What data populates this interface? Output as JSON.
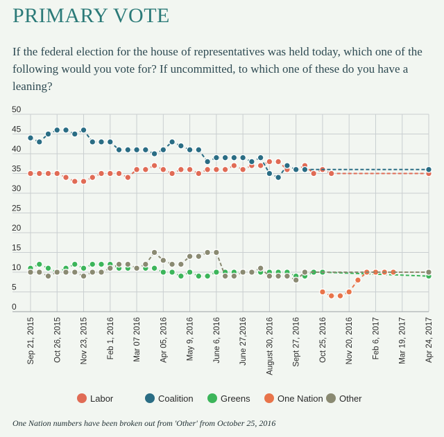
{
  "header": {
    "title": "PRIMARY VOTE",
    "subtitle": "If the federal election for the house of representatives was held today, which one of the following would you vote for? If uncommitted, to which one of these do you have a leaning?"
  },
  "footnote": "One Nation numbers have been broken out from 'Other' from October 25,  2016",
  "chart_data": {
    "type": "line",
    "ylim": [
      0,
      50
    ],
    "yticks": [
      0,
      5,
      10,
      15,
      20,
      25,
      30,
      35,
      40,
      45,
      50
    ],
    "grid": true,
    "legend_position": "bottom",
    "x_tick_labels": [
      "Sep 21, 2015",
      "Oct 26, 2015",
      "Nov 23, 2015",
      "Feb 1, 2016",
      "Mar 07 2016",
      "Apr 05, 2016",
      "May 9, 2016",
      "June 6, 2016",
      "June 27,2016",
      "August 30, 2016",
      "Sept 27, 2016",
      "Oct 25, 2016",
      "Nov 20, 2016",
      "Feb 6, 2017",
      "Mar 19, 2017",
      "Apr 24, 2017"
    ],
    "x_tick_positions": [
      0,
      3,
      6,
      9,
      12,
      15,
      18,
      21,
      24,
      27,
      30,
      33,
      36,
      39,
      42,
      45
    ],
    "n_points": 46,
    "series": [
      {
        "name": "Labor",
        "color": "#e06b55",
        "values": [
          35,
          35,
          35,
          35,
          34,
          33,
          33,
          34,
          35,
          35,
          35,
          34,
          36,
          36,
          37,
          36,
          35,
          36,
          36,
          35,
          36,
          36,
          36,
          37,
          36,
          37,
          37,
          38,
          38,
          36,
          36,
          37,
          35,
          36,
          35,
          null,
          null,
          null,
          null,
          null,
          null,
          null,
          null,
          null,
          null,
          35
        ]
      },
      {
        "name": "Coalition",
        "color": "#2a6d84",
        "values": [
          44,
          43,
          45,
          46,
          46,
          45,
          46,
          43,
          43,
          43,
          41,
          41,
          41,
          41,
          40,
          41,
          43,
          42,
          41,
          41,
          38,
          39,
          39,
          39,
          39,
          38,
          39,
          35,
          34,
          37,
          36,
          36,
          null,
          null,
          null,
          null,
          null,
          null,
          null,
          null,
          null,
          null,
          null,
          null,
          null,
          36
        ]
      },
      {
        "name": "Greens",
        "color": "#3cb55a",
        "values": [
          11,
          12,
          11,
          10,
          11,
          12,
          11,
          12,
          12,
          12,
          11,
          11,
          11,
          11,
          11,
          10,
          10,
          9,
          10,
          9,
          9,
          10,
          10,
          10,
          10,
          10,
          10,
          10,
          10,
          10,
          9,
          9,
          10,
          10,
          null,
          null,
          null,
          null,
          null,
          null,
          null,
          null,
          null,
          null,
          null,
          9
        ]
      },
      {
        "name": "One Nation",
        "color": "#e8744a",
        "values": [
          null,
          null,
          null,
          null,
          null,
          null,
          null,
          null,
          null,
          null,
          null,
          null,
          null,
          null,
          null,
          null,
          null,
          null,
          null,
          null,
          null,
          null,
          null,
          null,
          null,
          null,
          null,
          null,
          null,
          null,
          null,
          null,
          null,
          5,
          4,
          4,
          5,
          8,
          10,
          10,
          10,
          10,
          null,
          null,
          null,
          10
        ]
      },
      {
        "name": "Other",
        "color": "#8a8a72",
        "values": [
          10,
          10,
          9,
          10,
          10,
          10,
          9,
          10,
          10,
          11,
          12,
          12,
          11,
          12,
          15,
          13,
          12,
          12,
          14,
          14,
          15,
          15,
          9,
          9,
          10,
          10,
          11,
          9,
          9,
          9,
          8,
          10,
          null,
          null,
          null,
          null,
          null,
          null,
          null,
          null,
          null,
          null,
          null,
          null,
          null,
          10
        ]
      }
    ]
  }
}
